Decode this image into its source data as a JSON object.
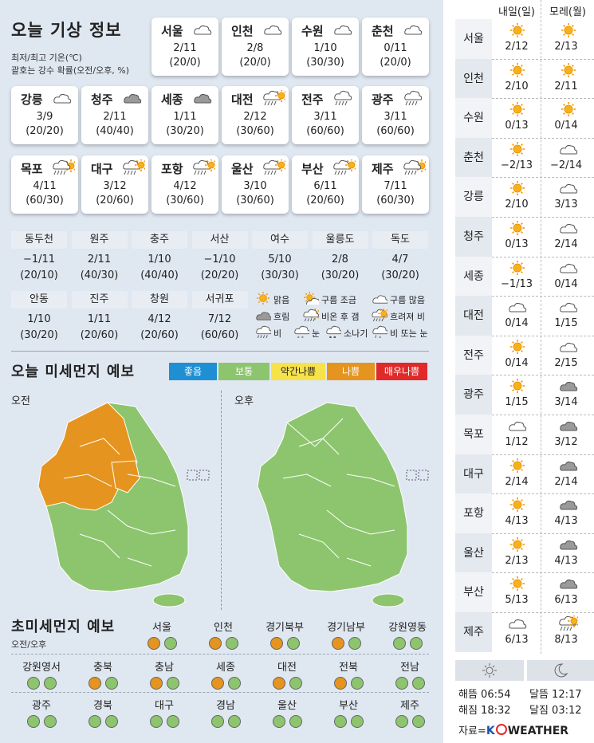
{
  "header": {
    "title": "오늘 기상 정보",
    "note1": "최저/최고 기온(℃)",
    "note2": "괄호는 강수 확률(오전/오후, %)"
  },
  "cards": [
    {
      "name": "서울",
      "icon": "cloudy",
      "temp": "2/11",
      "rain": "(20/0)"
    },
    {
      "name": "인천",
      "icon": "cloudy",
      "temp": "2/8",
      "rain": "(20/0)"
    },
    {
      "name": "수원",
      "icon": "cloudy",
      "temp": "1/10",
      "rain": "(30/30)"
    },
    {
      "name": "춘천",
      "icon": "cloudy",
      "temp": "0/11",
      "rain": "(20/0)"
    },
    {
      "name": "강릉",
      "icon": "cloudy",
      "temp": "3/9",
      "rain": "(20/20)"
    },
    {
      "name": "청주",
      "icon": "overcast",
      "temp": "2/11",
      "rain": "(40/40)"
    },
    {
      "name": "세종",
      "icon": "overcast",
      "temp": "1/11",
      "rain": "(30/20)"
    },
    {
      "name": "대전",
      "icon": "sun-rain",
      "temp": "2/12",
      "rain": "(30/60)"
    },
    {
      "name": "전주",
      "icon": "rain",
      "temp": "3/11",
      "rain": "(60/60)"
    },
    {
      "name": "광주",
      "icon": "rain",
      "temp": "3/11",
      "rain": "(60/60)"
    },
    {
      "name": "목포",
      "icon": "rain-sun",
      "temp": "4/11",
      "rain": "(60/30)"
    },
    {
      "name": "대구",
      "icon": "sun-rain",
      "temp": "3/12",
      "rain": "(20/60)"
    },
    {
      "name": "포항",
      "icon": "sun-rain",
      "temp": "4/12",
      "rain": "(30/60)"
    },
    {
      "name": "울산",
      "icon": "sun-rain",
      "temp": "3/10",
      "rain": "(30/60)"
    },
    {
      "name": "부산",
      "icon": "sun-rain",
      "temp": "6/11",
      "rain": "(20/60)"
    },
    {
      "name": "제주",
      "icon": "rain-sun",
      "temp": "7/11",
      "rain": "(60/30)"
    }
  ],
  "cities_row1": [
    {
      "name": "동두천",
      "temp": "−1/11",
      "rain": "(20/10)"
    },
    {
      "name": "원주",
      "temp": "2/11",
      "rain": "(40/30)"
    },
    {
      "name": "충주",
      "temp": "1/10",
      "rain": "(40/40)"
    },
    {
      "name": "서산",
      "temp": "−1/10",
      "rain": "(20/20)"
    },
    {
      "name": "여수",
      "temp": "5/10",
      "rain": "(30/30)"
    },
    {
      "name": "울릉도",
      "temp": "2/8",
      "rain": "(30/20)"
    },
    {
      "name": "독도",
      "temp": "4/7",
      "rain": "(30/20)"
    }
  ],
  "cities_row2": [
    {
      "name": "안동",
      "temp": "1/10",
      "rain": "(30/20)"
    },
    {
      "name": "진주",
      "temp": "1/11",
      "rain": "(20/60)"
    },
    {
      "name": "창원",
      "temp": "4/12",
      "rain": "(20/60)"
    },
    {
      "name": "서귀포",
      "temp": "7/12",
      "rain": "(60/60)"
    }
  ],
  "legend": [
    {
      "icon": "sun",
      "label": "맑음"
    },
    {
      "icon": "partly",
      "label": "구름 조금"
    },
    {
      "icon": "cloudy",
      "label": "구름 많음"
    },
    {
      "icon": "overcast",
      "label": "흐림"
    },
    {
      "icon": "rain-sun",
      "label": "비온 후 갬"
    },
    {
      "icon": "sun-rain",
      "label": "흐려져 비"
    },
    {
      "icon": "rain",
      "label": "비"
    },
    {
      "icon": "snow",
      "label": "눈"
    },
    {
      "icon": "shower",
      "label": "소나기"
    },
    {
      "icon": "rain-snow",
      "label": "비 또는 눈"
    }
  ],
  "dust": {
    "title": "오늘 미세먼지 예보",
    "morning": "오전",
    "afternoon": "오후",
    "levels": [
      {
        "label": "좋음",
        "color": "#1f8fd4"
      },
      {
        "label": "보통",
        "color": "#8dc56e"
      },
      {
        "label": "약간나쁨",
        "color": "#f7e24a"
      },
      {
        "label": "나쁨",
        "color": "#e5941f"
      },
      {
        "label": "매우나쁨",
        "color": "#e02a2a"
      }
    ]
  },
  "ultrafine": {
    "title": "초미세먼지 예보",
    "subtitle": "오전/오후",
    "regions": [
      {
        "name": "서울",
        "am": "o",
        "pm": "g"
      },
      {
        "name": "인천",
        "am": "o",
        "pm": "g"
      },
      {
        "name": "경기북부",
        "am": "o",
        "pm": "g"
      },
      {
        "name": "경기남부",
        "am": "o",
        "pm": "g"
      },
      {
        "name": "강원영동",
        "am": "g",
        "pm": "g"
      },
      {
        "name": "강원영서",
        "am": "g",
        "pm": "g"
      },
      {
        "name": "충북",
        "am": "o",
        "pm": "g"
      },
      {
        "name": "충남",
        "am": "o",
        "pm": "g"
      },
      {
        "name": "세종",
        "am": "o",
        "pm": "g"
      },
      {
        "name": "대전",
        "am": "o",
        "pm": "g"
      },
      {
        "name": "전북",
        "am": "o",
        "pm": "g"
      },
      {
        "name": "전남",
        "am": "g",
        "pm": "g"
      },
      {
        "name": "광주",
        "am": "g",
        "pm": "g"
      },
      {
        "name": "경북",
        "am": "g",
        "pm": "g"
      },
      {
        "name": "대구",
        "am": "g",
        "pm": "g"
      },
      {
        "name": "경남",
        "am": "g",
        "pm": "g"
      },
      {
        "name": "울산",
        "am": "g",
        "pm": "g"
      },
      {
        "name": "부산",
        "am": "g",
        "pm": "g"
      },
      {
        "name": "제주",
        "am": "g",
        "pm": "g"
      }
    ]
  },
  "forecast": {
    "col1": "내일(일)",
    "col2": "모레(월)",
    "rows": [
      {
        "city": "서울",
        "d1icon": "sun",
        "d1": "2/12",
        "d2icon": "sun",
        "d2": "2/13"
      },
      {
        "city": "인천",
        "d1icon": "sun",
        "d1": "2/10",
        "d2icon": "sun",
        "d2": "2/11"
      },
      {
        "city": "수원",
        "d1icon": "sun",
        "d1": "0/13",
        "d2icon": "sun",
        "d2": "0/14"
      },
      {
        "city": "춘천",
        "d1icon": "sun",
        "d1": "−2/13",
        "d2icon": "cloudy",
        "d2": "−2/14"
      },
      {
        "city": "강릉",
        "d1icon": "sun",
        "d1": "2/10",
        "d2icon": "cloudy",
        "d2": "3/13"
      },
      {
        "city": "청주",
        "d1icon": "sun",
        "d1": "0/13",
        "d2icon": "cloudy",
        "d2": "2/14"
      },
      {
        "city": "세종",
        "d1icon": "sun",
        "d1": "−1/13",
        "d2icon": "cloudy",
        "d2": "0/14"
      },
      {
        "city": "대전",
        "d1icon": "cloudy",
        "d1": "0/14",
        "d2icon": "cloudy",
        "d2": "1/15"
      },
      {
        "city": "전주",
        "d1icon": "sun",
        "d1": "0/14",
        "d2icon": "cloudy",
        "d2": "2/15"
      },
      {
        "city": "광주",
        "d1icon": "sun",
        "d1": "1/15",
        "d2icon": "overcast",
        "d2": "3/14"
      },
      {
        "city": "목포",
        "d1icon": "cloudy",
        "d1": "1/12",
        "d2icon": "overcast",
        "d2": "3/12"
      },
      {
        "city": "대구",
        "d1icon": "sun",
        "d1": "2/14",
        "d2icon": "overcast",
        "d2": "2/14"
      },
      {
        "city": "포항",
        "d1icon": "sun",
        "d1": "4/13",
        "d2icon": "overcast",
        "d2": "4/13"
      },
      {
        "city": "울산",
        "d1icon": "sun",
        "d1": "2/13",
        "d2icon": "overcast",
        "d2": "4/13"
      },
      {
        "city": "부산",
        "d1icon": "sun",
        "d1": "5/13",
        "d2icon": "overcast",
        "d2": "6/13"
      },
      {
        "city": "제주",
        "d1icon": "cloudy",
        "d1": "6/13",
        "d2icon": "sun-rain",
        "d2": "8/13"
      }
    ],
    "sunrise": "해뜸 06:54",
    "sunset": "해짐 18:32",
    "moonrise": "달뜸 12:17",
    "moonset": "달짐 03:12",
    "source_prefix": "자료=",
    "source_brand": "K",
    "source_brand_rest": "WEATHER"
  }
}
